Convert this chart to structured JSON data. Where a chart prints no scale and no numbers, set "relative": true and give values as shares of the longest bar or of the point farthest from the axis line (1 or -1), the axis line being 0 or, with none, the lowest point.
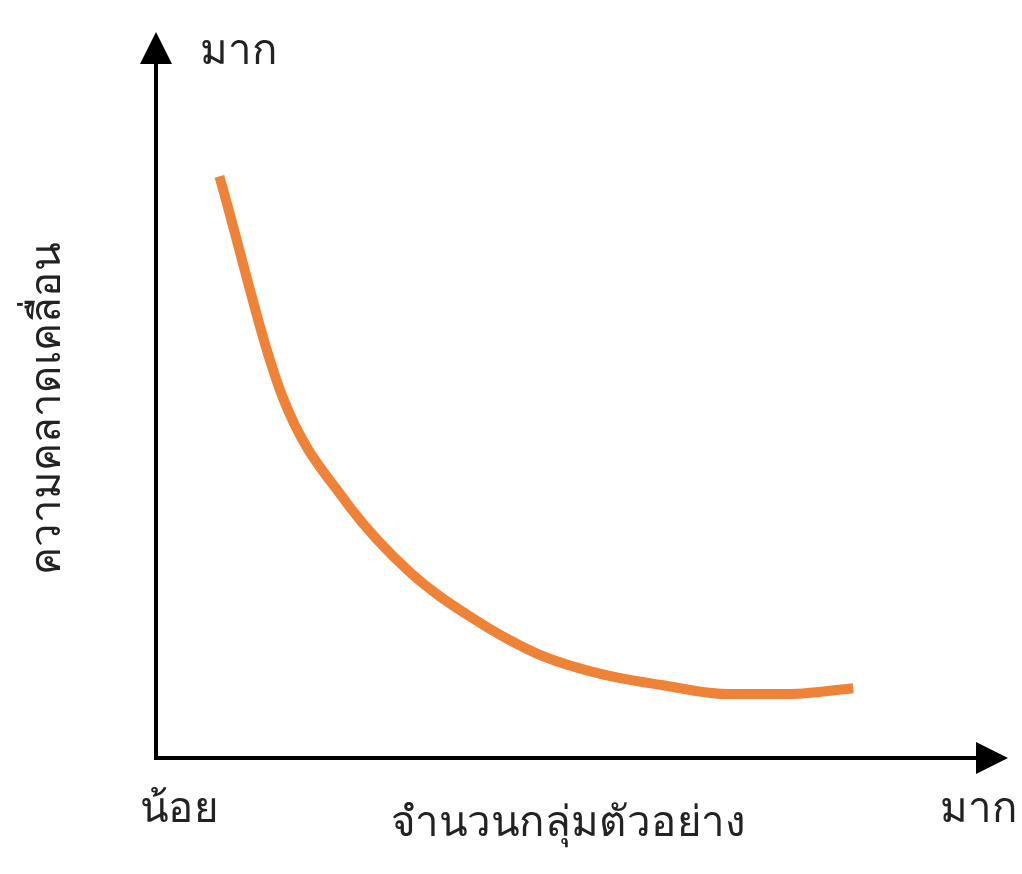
{
  "chart_data": {
    "type": "line",
    "relative": true,
    "xlabel": "จำนวนกลุ่มตัวอย่าง",
    "ylabel": "ความคลาดเคลื่อน",
    "annotations": [
      "มาก",
      "น้อย",
      "มาก"
    ],
    "categories": [
      null,
      null,
      null,
      null,
      null,
      null,
      null,
      null,
      null,
      null,
      null,
      null,
      null,
      null
    ],
    "series": [
      {
        "color": "#ee8236",
        "values": [
          null,
          1.0,
          0.62,
          0.44,
          0.32,
          0.24,
          0.18,
          0.145,
          0.125,
          0.11,
          0.11,
          0.12,
          null,
          null
        ]
      }
    ],
    "marker": "none",
    "line_style": "solid",
    "grid": false,
    "legend": false
  }
}
